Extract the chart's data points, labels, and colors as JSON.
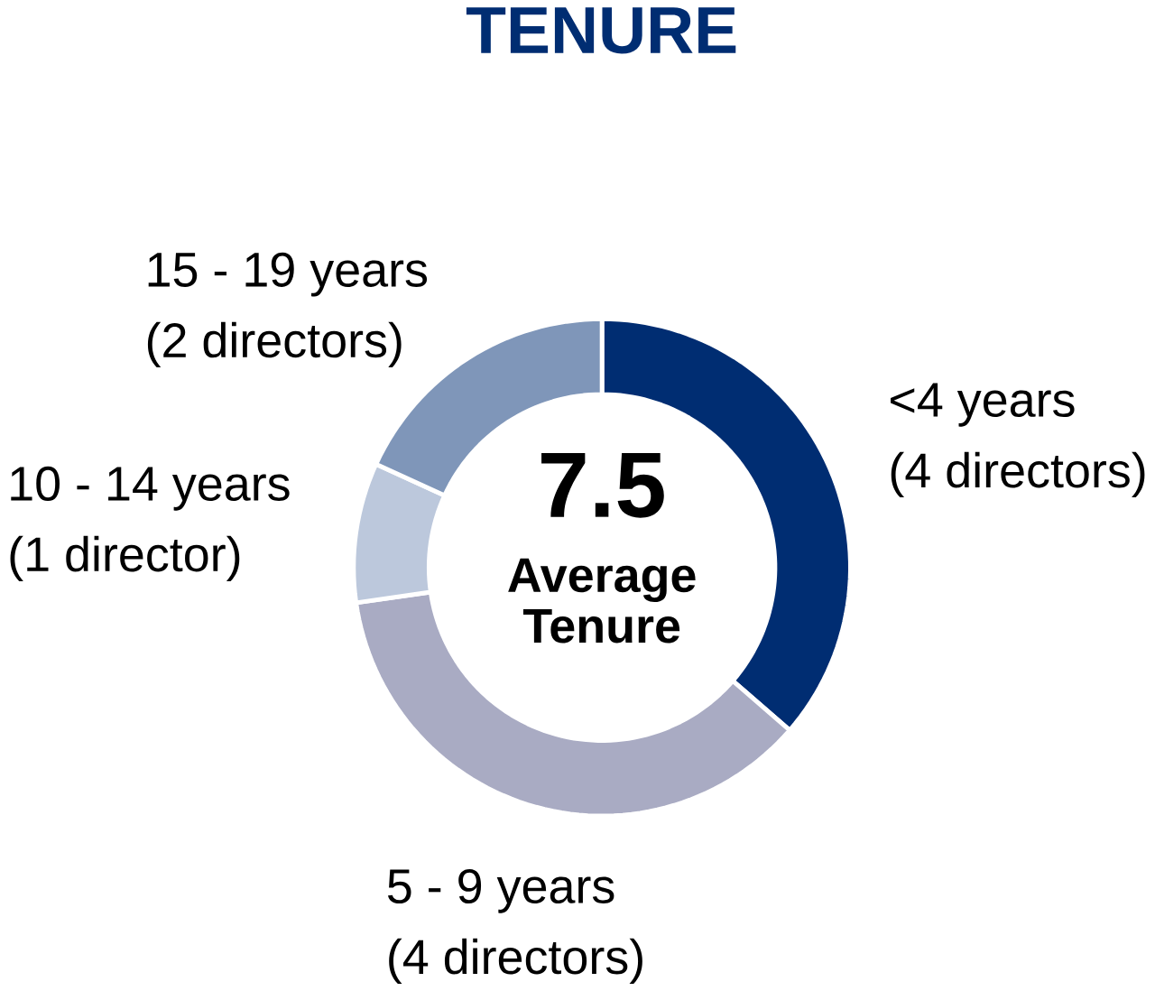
{
  "chart_data": {
    "type": "donut",
    "title": "TENURE",
    "categories": [
      "<4 years",
      "5 - 9 years",
      "10 - 14 years",
      "15 - 19 years"
    ],
    "values": [
      4,
      4,
      1,
      2
    ],
    "value_labels": [
      "(4 directors)",
      "(4 directors)",
      "(1 director)",
      "(2 directors)"
    ],
    "colors": [
      "#002d72",
      "#a9abc3",
      "#bcc8dc",
      "#7f96b9"
    ],
    "annotations": [
      "7.5",
      "Average Tenure"
    ]
  }
}
